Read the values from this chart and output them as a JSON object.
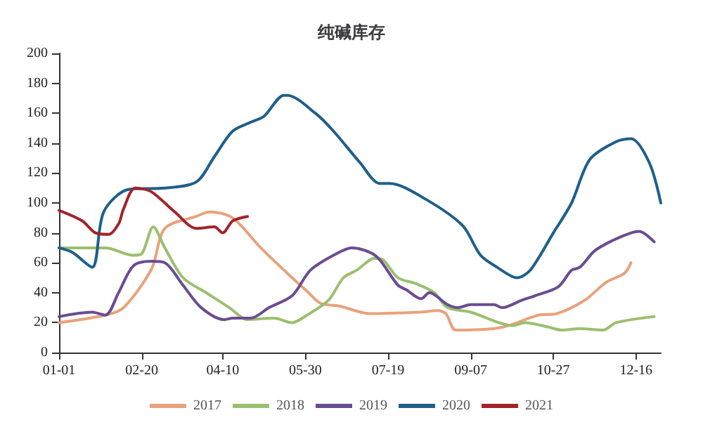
{
  "chart_data": {
    "type": "line",
    "title": "纯碱库存",
    "legend": "bottom",
    "grid": false,
    "marker": "none",
    "line_style": "solid",
    "xlim": [
      "--01-01",
      "--12-31"
    ],
    "xticks": [
      {
        "value": "--01-01",
        "label": "01-01"
      },
      {
        "value": "--02-20",
        "label": "02-20"
      },
      {
        "value": "--04-10",
        "label": "04-10"
      },
      {
        "value": "--05-30",
        "label": "05-30"
      },
      {
        "value": "--07-19",
        "label": "07-19"
      },
      {
        "value": "--09-07",
        "label": "09-07"
      },
      {
        "value": "--10-27",
        "label": "10-27"
      },
      {
        "value": "--12-16",
        "label": "12-16"
      }
    ],
    "ylim": [
      0,
      200
    ],
    "yticks": [
      0,
      20,
      40,
      60,
      80,
      100,
      120,
      140,
      160,
      180,
      200
    ],
    "series": [
      {
        "name": "2017",
        "color": "#e8a27c",
        "x": [
          "--01-01",
          "--01-29",
          "--02-09",
          "--02-26",
          "--03-06",
          "--03-25",
          "--04-02",
          "--04-16",
          "--05-03",
          "--05-22",
          "--05-31",
          "--06-08",
          "--06-20",
          "--07-08",
          "--08-07",
          "--08-18",
          "--08-23",
          "--08-29",
          "--09-21",
          "--09-30",
          "--10-18",
          "--10-29",
          "--11-15",
          "--11-28",
          "--12-09",
          "--12-13"
        ],
        "values": [
          20,
          25,
          30,
          56,
          83,
          91,
          94,
          90,
          70,
          50,
          41,
          33,
          31,
          26,
          27,
          28,
          26,
          15,
          16,
          18,
          25,
          26,
          35,
          47,
          53,
          60
        ]
      },
      {
        "name": "2018",
        "color": "#9bbf6f",
        "x": [
          "--01-01",
          "--01-29",
          "--02-15",
          "--02-20",
          "--02-27",
          "--03-06",
          "--03-17",
          "--03-31",
          "--04-14",
          "--04-25",
          "--05-11",
          "--05-22",
          "--05-31",
          "--06-13",
          "--06-22",
          "--06-30",
          "--07-11",
          "--07-16",
          "--07-25",
          "--08-05",
          "--08-16",
          "--08-24",
          "--09-07",
          "--09-24",
          "--10-02",
          "--10-10",
          "--10-24",
          "--11-01",
          "--11-12",
          "--11-26",
          "--12-04",
          "--12-27"
        ],
        "values": [
          70,
          70,
          65,
          66,
          84,
          70,
          50,
          40,
          30,
          22,
          23,
          20,
          25,
          35,
          50,
          55,
          63,
          62,
          50,
          46,
          40,
          30,
          27,
          20,
          18,
          20,
          17,
          15,
          16,
          15,
          20,
          24
        ]
      },
      {
        "name": "2019",
        "color": "#6a4c93",
        "x": [
          "--01-01",
          "--01-21",
          "--01-29",
          "--02-06",
          "--02-15",
          "--02-26",
          "--03-06",
          "--03-17",
          "--03-28",
          "--04-11",
          "--04-16",
          "--04-27",
          "--05-08",
          "--05-22",
          "--06-02",
          "--06-16",
          "--06-27",
          "--07-08",
          "--07-14",
          "--07-25",
          "--07-30",
          "--08-08",
          "--08-13",
          "--08-24",
          "--08-30",
          "--09-07",
          "--09-21",
          "--09-26",
          "--10-08",
          "--10-16",
          "--10-30",
          "--11-07",
          "--11-12",
          "--11-21",
          "--12-02",
          "--12-13",
          "--12-18",
          "--12-27"
        ],
        "values": [
          24,
          27,
          25,
          40,
          58,
          61,
          60,
          45,
          30,
          22,
          23,
          23,
          30,
          38,
          55,
          65,
          70,
          67,
          62,
          45,
          42,
          36,
          40,
          32,
          30,
          32,
          32,
          30,
          35,
          38,
          44,
          55,
          57,
          68,
          75,
          80,
          81,
          74
        ]
      },
      {
        "name": "2020",
        "color": "#1f5f8b",
        "x": [
          "--01-01",
          "--01-09",
          "--01-21",
          "--01-28",
          "--02-12",
          "--03-06",
          "--03-25",
          "--04-05",
          "--04-16",
          "--04-27",
          "--05-05",
          "--05-17",
          "--05-19",
          "--06-05",
          "--06-16",
          "--07-02",
          "--07-14",
          "--07-20",
          "--08-10",
          "--09-02",
          "--09-13",
          "--09-23",
          "--10-05",
          "--10-13",
          "--10-27",
          "--11-07",
          "--11-18",
          "--12-04",
          "--12-13",
          "--12-24",
          "--12-31"
        ],
        "values": [
          70,
          67,
          57,
          94,
          109,
          110,
          114,
          131,
          148,
          154,
          158,
          172,
          172,
          160,
          148,
          127,
          113,
          113,
          103,
          85,
          65,
          57,
          50,
          55,
          80,
          100,
          129,
          141,
          143,
          127,
          100
        ]
      },
      {
        "name": "2021",
        "color": "#a3232a",
        "x": [
          "--01-01",
          "--01-15",
          "--01-23",
          "--01-31",
          "--02-06",
          "--02-09",
          "--02-16",
          "--02-25",
          "--03-04",
          "--03-12",
          "--03-25",
          "--04-05",
          "--04-10",
          "--04-16",
          "--04-25"
        ],
        "values": [
          95,
          88,
          80,
          79,
          86,
          96,
          110,
          108,
          102,
          94,
          83,
          84,
          80,
          88,
          91
        ]
      }
    ]
  }
}
